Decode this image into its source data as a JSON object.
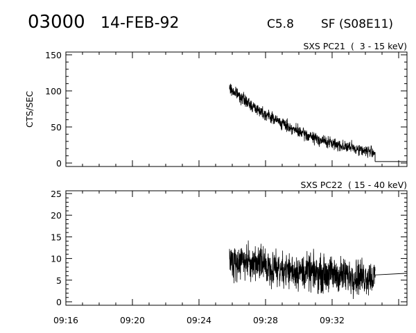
{
  "header": {
    "event_id": "03000",
    "date": "14-FEB-92",
    "goes_class": "C5.8",
    "flare_info": "SF (S08E11)"
  },
  "chart_data": [
    {
      "type": "line",
      "title": "SXS PC21  (  3 - 15 keV)",
      "ylabel": "CTS/SEC",
      "xlabel": "",
      "xlim": [
        "09:16",
        "09:36:30"
      ],
      "ylim": [
        0,
        150
      ],
      "yticks": [
        0,
        50,
        100,
        150
      ],
      "x_tick_labels": [],
      "grid": false,
      "series": [
        {
          "color": "#000000",
          "envelope": {
            "x": [
              "09:25:50",
              "09:26:30",
              "09:27:00",
              "09:28:00",
              "09:29:00",
              "09:30:00",
              "09:31:00",
              "09:32:00",
              "09:33:00",
              "09:34:00",
              "09:34:35"
            ],
            "y": [
              103,
              92,
              82,
              68,
              55,
              43,
              34,
              27,
              22,
              17,
              15
            ]
          },
          "noise_amplitude": 9,
          "x_end": "09:34:35",
          "tail": {
            "x": [
              "09:34:35",
              "09:36:30"
            ],
            "y": [
              2,
              2
            ]
          }
        }
      ]
    },
    {
      "type": "line",
      "title": "SXS PC22  ( 15 - 40 keV)",
      "ylabel": "",
      "xlabel": "",
      "xlim": [
        "09:16",
        "09:36:30"
      ],
      "ylim": [
        0,
        25
      ],
      "yticks": [
        0,
        5,
        10,
        15,
        20,
        25
      ],
      "x_tick_labels": [
        "09:16",
        "09:20",
        "09:24",
        "09:28",
        "09:32"
      ],
      "grid": false,
      "series": [
        {
          "color": "#000000",
          "envelope": {
            "x": [
              "09:25:50",
              "09:27:00",
              "09:28:00",
              "09:29:00",
              "09:30:00",
              "09:31:00",
              "09:32:00",
              "09:33:00",
              "09:34:00",
              "09:34:35"
            ],
            "y": [
              9.5,
              9,
              8.3,
              7.6,
              7,
              6.6,
              6.3,
              6,
              5.8,
              5.6
            ]
          },
          "noise_amplitude": 4.5,
          "x_end": "09:34:35",
          "tail": {
            "x": [
              "09:34:35",
              "09:36:30"
            ],
            "y": [
              6.2,
              6.6
            ]
          }
        }
      ]
    }
  ]
}
